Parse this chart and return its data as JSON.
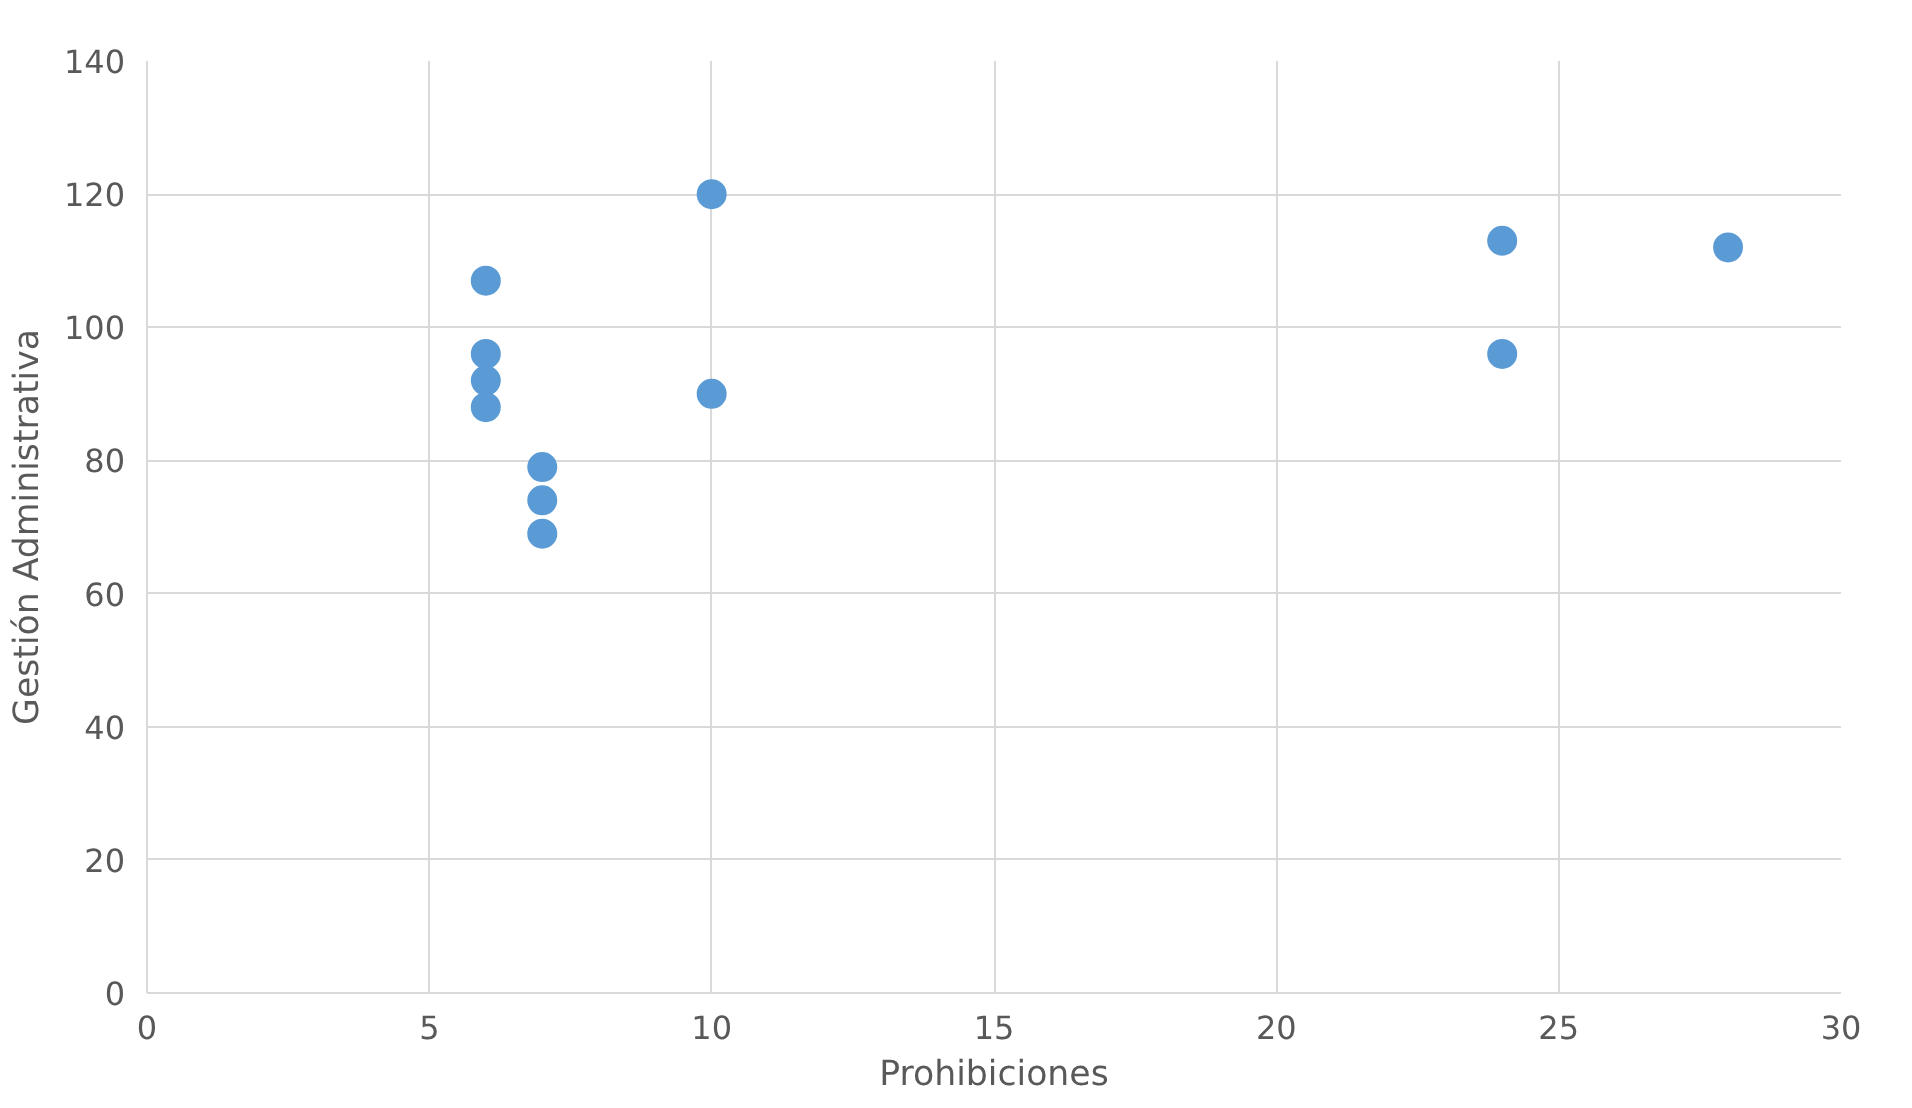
{
  "chart_data": {
    "type": "scatter",
    "xlabel": "Prohibiciones",
    "ylabel": "Gestión Administrativa",
    "x": [
      6,
      6,
      6,
      6,
      7,
      7,
      7,
      10,
      10,
      24,
      24,
      28
    ],
    "series": [
      {
        "color": "#5b9bd5",
        "values": [
          107,
          96,
          92,
          88,
          79,
          74,
          69,
          120,
          90,
          113,
          96,
          112
        ]
      }
    ],
    "xlim": [
      0,
      30
    ],
    "ylim": [
      0,
      140
    ],
    "xticks": [
      0,
      5,
      10,
      15,
      20,
      25,
      30
    ],
    "yticks": [
      0,
      20,
      40,
      60,
      80,
      100,
      120,
      140
    ],
    "grid": true,
    "marker": "circle"
  }
}
